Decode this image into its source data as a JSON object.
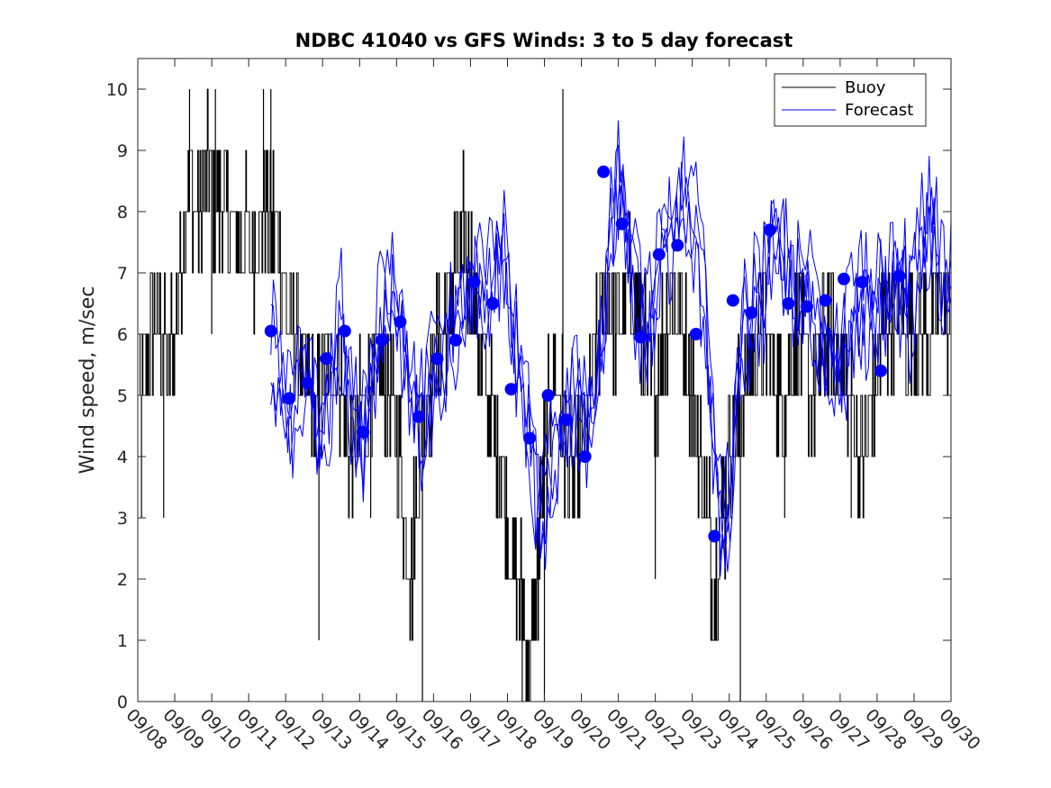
{
  "chart_data": {
    "type": "line",
    "title": "NDBC 41040 vs GFS Winds: 3 to 5 day forecast",
    "xlabel": "",
    "ylabel": "Wind speed, m/sec",
    "ylim": [
      0,
      10.5
    ],
    "yticks": [
      0,
      1,
      2,
      3,
      4,
      5,
      6,
      7,
      8,
      9,
      10
    ],
    "xlim": [
      0,
      22
    ],
    "xtick_labels": [
      "09/08",
      "09/09",
      "09/10",
      "09/11",
      "09/12",
      "09/13",
      "09/14",
      "09/15",
      "09/16",
      "09/17",
      "09/18",
      "09/19",
      "09/20",
      "09/21",
      "09/22",
      "09/23",
      "09/24",
      "09/25",
      "09/26",
      "09/27",
      "09/28",
      "09/29",
      "09/30"
    ],
    "legend": {
      "position": "top-right",
      "entries": [
        {
          "label": "Buoy",
          "color": "#000000"
        },
        {
          "label": "Forecast",
          "color": "#0000ff"
        }
      ]
    },
    "buoy_color": "#000000",
    "forecast_color": "#0000ff",
    "buoy_anchors": [
      [
        0.0,
        5
      ],
      [
        0.3,
        6
      ],
      [
        0.5,
        6.5
      ],
      [
        0.8,
        5.5
      ],
      [
        1.0,
        6
      ],
      [
        1.2,
        7.5
      ],
      [
        1.4,
        8.5
      ],
      [
        1.6,
        8
      ],
      [
        1.8,
        8.5
      ],
      [
        2.0,
        8.5
      ],
      [
        2.2,
        8
      ],
      [
        2.4,
        8
      ],
      [
        2.6,
        7.5
      ],
      [
        2.9,
        7.5
      ],
      [
        3.2,
        7.5
      ],
      [
        3.4,
        8
      ],
      [
        3.6,
        8
      ],
      [
        3.8,
        7.5
      ],
      [
        4.0,
        6.5
      ],
      [
        4.2,
        6
      ],
      [
        4.4,
        5.5
      ],
      [
        4.6,
        5
      ],
      [
        4.8,
        4.5
      ],
      [
        5.0,
        5
      ],
      [
        5.2,
        5.5
      ],
      [
        5.4,
        5.5
      ],
      [
        5.6,
        4.5
      ],
      [
        5.8,
        4
      ],
      [
        6.0,
        4.5
      ],
      [
        6.2,
        5
      ],
      [
        6.4,
        5
      ],
      [
        6.6,
        5.5
      ],
      [
        6.8,
        5
      ],
      [
        7.0,
        4.5
      ],
      [
        7.2,
        3
      ],
      [
        7.4,
        2
      ],
      [
        7.6,
        4
      ],
      [
        7.8,
        5
      ],
      [
        8.0,
        5.5
      ],
      [
        8.2,
        6
      ],
      [
        8.4,
        6.5
      ],
      [
        8.6,
        7
      ],
      [
        8.8,
        7.5
      ],
      [
        9.0,
        7
      ],
      [
        9.2,
        6
      ],
      [
        9.4,
        5
      ],
      [
        9.6,
        4.5
      ],
      [
        9.8,
        4
      ],
      [
        10.0,
        3
      ],
      [
        10.2,
        2
      ],
      [
        10.4,
        1.5
      ],
      [
        10.6,
        0.5
      ],
      [
        10.8,
        2
      ],
      [
        11.0,
        4
      ],
      [
        11.2,
        5.5
      ],
      [
        11.4,
        5
      ],
      [
        11.6,
        4
      ],
      [
        11.8,
        3.5
      ],
      [
        12.0,
        4
      ],
      [
        12.2,
        5
      ],
      [
        12.4,
        6
      ],
      [
        12.6,
        6.5
      ],
      [
        12.8,
        6.5
      ],
      [
        13.0,
        6
      ],
      [
        13.2,
        6.5
      ],
      [
        13.4,
        6.5
      ],
      [
        13.6,
        6
      ],
      [
        13.8,
        5.5
      ],
      [
        14.0,
        5
      ],
      [
        14.2,
        6
      ],
      [
        14.4,
        6.5
      ],
      [
        14.6,
        6.5
      ],
      [
        14.8,
        6
      ],
      [
        15.0,
        5
      ],
      [
        15.2,
        4
      ],
      [
        15.4,
        3
      ],
      [
        15.6,
        2
      ],
      [
        15.8,
        3
      ],
      [
        16.0,
        4
      ],
      [
        16.2,
        4.5
      ],
      [
        16.4,
        5
      ],
      [
        16.6,
        5.5
      ],
      [
        16.8,
        6
      ],
      [
        17.0,
        6
      ],
      [
        17.2,
        5.5
      ],
      [
        17.4,
        5
      ],
      [
        17.6,
        5.5
      ],
      [
        17.8,
        6
      ],
      [
        18.0,
        5.5
      ],
      [
        18.2,
        5
      ],
      [
        18.4,
        5.5
      ],
      [
        18.6,
        6
      ],
      [
        18.8,
        6
      ],
      [
        19.0,
        5.5
      ],
      [
        19.2,
        5
      ],
      [
        19.4,
        4.5
      ],
      [
        19.6,
        4
      ],
      [
        19.8,
        4.5
      ],
      [
        20.0,
        5.5
      ],
      [
        20.2,
        6
      ],
      [
        20.4,
        6.5
      ],
      [
        20.6,
        6.5
      ],
      [
        20.8,
        6
      ],
      [
        21.0,
        6.5
      ],
      [
        21.2,
        6
      ],
      [
        21.4,
        6
      ],
      [
        21.6,
        6.5
      ],
      [
        21.8,
        6.5
      ],
      [
        22.0,
        6
      ]
    ],
    "buoy_spikes": [
      [
        1.4,
        10
      ],
      [
        1.9,
        10
      ],
      [
        2.1,
        10
      ],
      [
        3.4,
        10
      ],
      [
        3.6,
        10
      ],
      [
        4.9,
        1
      ],
      [
        7.7,
        0
      ],
      [
        11.5,
        10
      ],
      [
        16.3,
        0
      ],
      [
        2.0,
        6
      ],
      [
        0.7,
        3
      ],
      [
        0.1,
        3
      ],
      [
        4.4,
        5
      ],
      [
        6.3,
        3
      ],
      [
        10.4,
        0
      ],
      [
        11.0,
        0
      ],
      [
        14.0,
        2
      ],
      [
        15.6,
        1
      ],
      [
        17.5,
        3
      ],
      [
        19.3,
        3
      ]
    ],
    "forecast_points": [
      [
        3.6,
        6.05
      ],
      [
        4.1,
        4.95
      ],
      [
        4.6,
        5.2
      ],
      [
        5.1,
        5.6
      ],
      [
        5.6,
        6.05
      ],
      [
        6.1,
        4.4
      ],
      [
        6.6,
        5.9
      ],
      [
        7.1,
        6.2
      ],
      [
        7.6,
        4.65
      ],
      [
        8.1,
        5.6
      ],
      [
        8.6,
        5.9
      ],
      [
        9.1,
        6.85
      ],
      [
        9.6,
        6.5
      ],
      [
        10.1,
        5.1
      ],
      [
        10.6,
        4.3
      ],
      [
        11.1,
        5.0
      ],
      [
        11.6,
        4.6
      ],
      [
        12.1,
        4.0
      ],
      [
        12.6,
        8.65
      ],
      [
        13.1,
        7.8
      ],
      [
        13.6,
        5.95
      ],
      [
        14.1,
        7.3
      ],
      [
        14.6,
        7.45
      ],
      [
        15.1,
        6.0
      ],
      [
        15.6,
        2.7
      ],
      [
        16.1,
        6.55
      ],
      [
        16.6,
        6.35
      ],
      [
        17.1,
        7.7
      ],
      [
        17.6,
        6.5
      ],
      [
        18.1,
        6.45
      ],
      [
        18.6,
        6.55
      ],
      [
        19.1,
        6.9
      ],
      [
        19.6,
        6.85
      ],
      [
        20.1,
        5.4
      ],
      [
        20.6,
        6.95
      ]
    ],
    "forecast_series_count": 4,
    "forecast_anchors": [
      [
        3.6,
        6.0
      ],
      [
        3.9,
        5.2
      ],
      [
        4.2,
        4.7
      ],
      [
        4.5,
        5.5
      ],
      [
        4.8,
        4.6
      ],
      [
        5.0,
        4.0
      ],
      [
        5.3,
        5.2
      ],
      [
        5.5,
        6.2
      ],
      [
        5.8,
        4.8
      ],
      [
        6.1,
        4.2
      ],
      [
        6.3,
        5.2
      ],
      [
        6.6,
        6.3
      ],
      [
        6.9,
        6.8
      ],
      [
        7.1,
        6.2
      ],
      [
        7.4,
        5.3
      ],
      [
        7.6,
        4.6
      ],
      [
        7.8,
        4.9
      ],
      [
        8.1,
        5.4
      ],
      [
        8.4,
        6.0
      ],
      [
        8.7,
        6.3
      ],
      [
        9.0,
        6.7
      ],
      [
        9.3,
        6.7
      ],
      [
        9.6,
        7.2
      ],
      [
        9.9,
        7.6
      ],
      [
        10.1,
        6.3
      ],
      [
        10.4,
        5.0
      ],
      [
        10.6,
        4.2
      ],
      [
        10.9,
        3.0
      ],
      [
        11.1,
        3.5
      ],
      [
        11.4,
        4.4
      ],
      [
        11.6,
        4.7
      ],
      [
        11.9,
        5.0
      ],
      [
        12.1,
        4.6
      ],
      [
        12.4,
        5.1
      ],
      [
        12.6,
        6.0
      ],
      [
        12.8,
        8.2
      ],
      [
        13.0,
        8.3
      ],
      [
        13.3,
        7.6
      ],
      [
        13.5,
        6.5
      ],
      [
        13.8,
        6.3
      ],
      [
        14.0,
        6.8
      ],
      [
        14.2,
        7.4
      ],
      [
        14.5,
        7.7
      ],
      [
        14.7,
        8.3
      ],
      [
        15.0,
        8.0
      ],
      [
        15.2,
        7.2
      ],
      [
        15.4,
        6.0
      ],
      [
        15.6,
        4.2
      ],
      [
        15.8,
        2.6
      ],
      [
        16.0,
        3.3
      ],
      [
        16.2,
        5.0
      ],
      [
        16.4,
        6.1
      ],
      [
        16.7,
        6.5
      ],
      [
        17.0,
        6.7
      ],
      [
        17.2,
        7.4
      ],
      [
        17.5,
        7.2
      ],
      [
        17.8,
        6.8
      ],
      [
        18.1,
        6.9
      ],
      [
        18.4,
        6.2
      ],
      [
        18.6,
        5.6
      ],
      [
        18.9,
        5.3
      ],
      [
        19.2,
        5.9
      ],
      [
        19.4,
        6.5
      ],
      [
        19.7,
        6.4
      ],
      [
        20.0,
        6.6
      ],
      [
        20.3,
        6.9
      ],
      [
        20.6,
        6.9
      ],
      [
        20.9,
        6.3
      ],
      [
        21.2,
        7.4
      ],
      [
        21.5,
        8.0
      ],
      [
        21.8,
        6.5
      ],
      [
        22.0,
        7.0
      ]
    ]
  }
}
